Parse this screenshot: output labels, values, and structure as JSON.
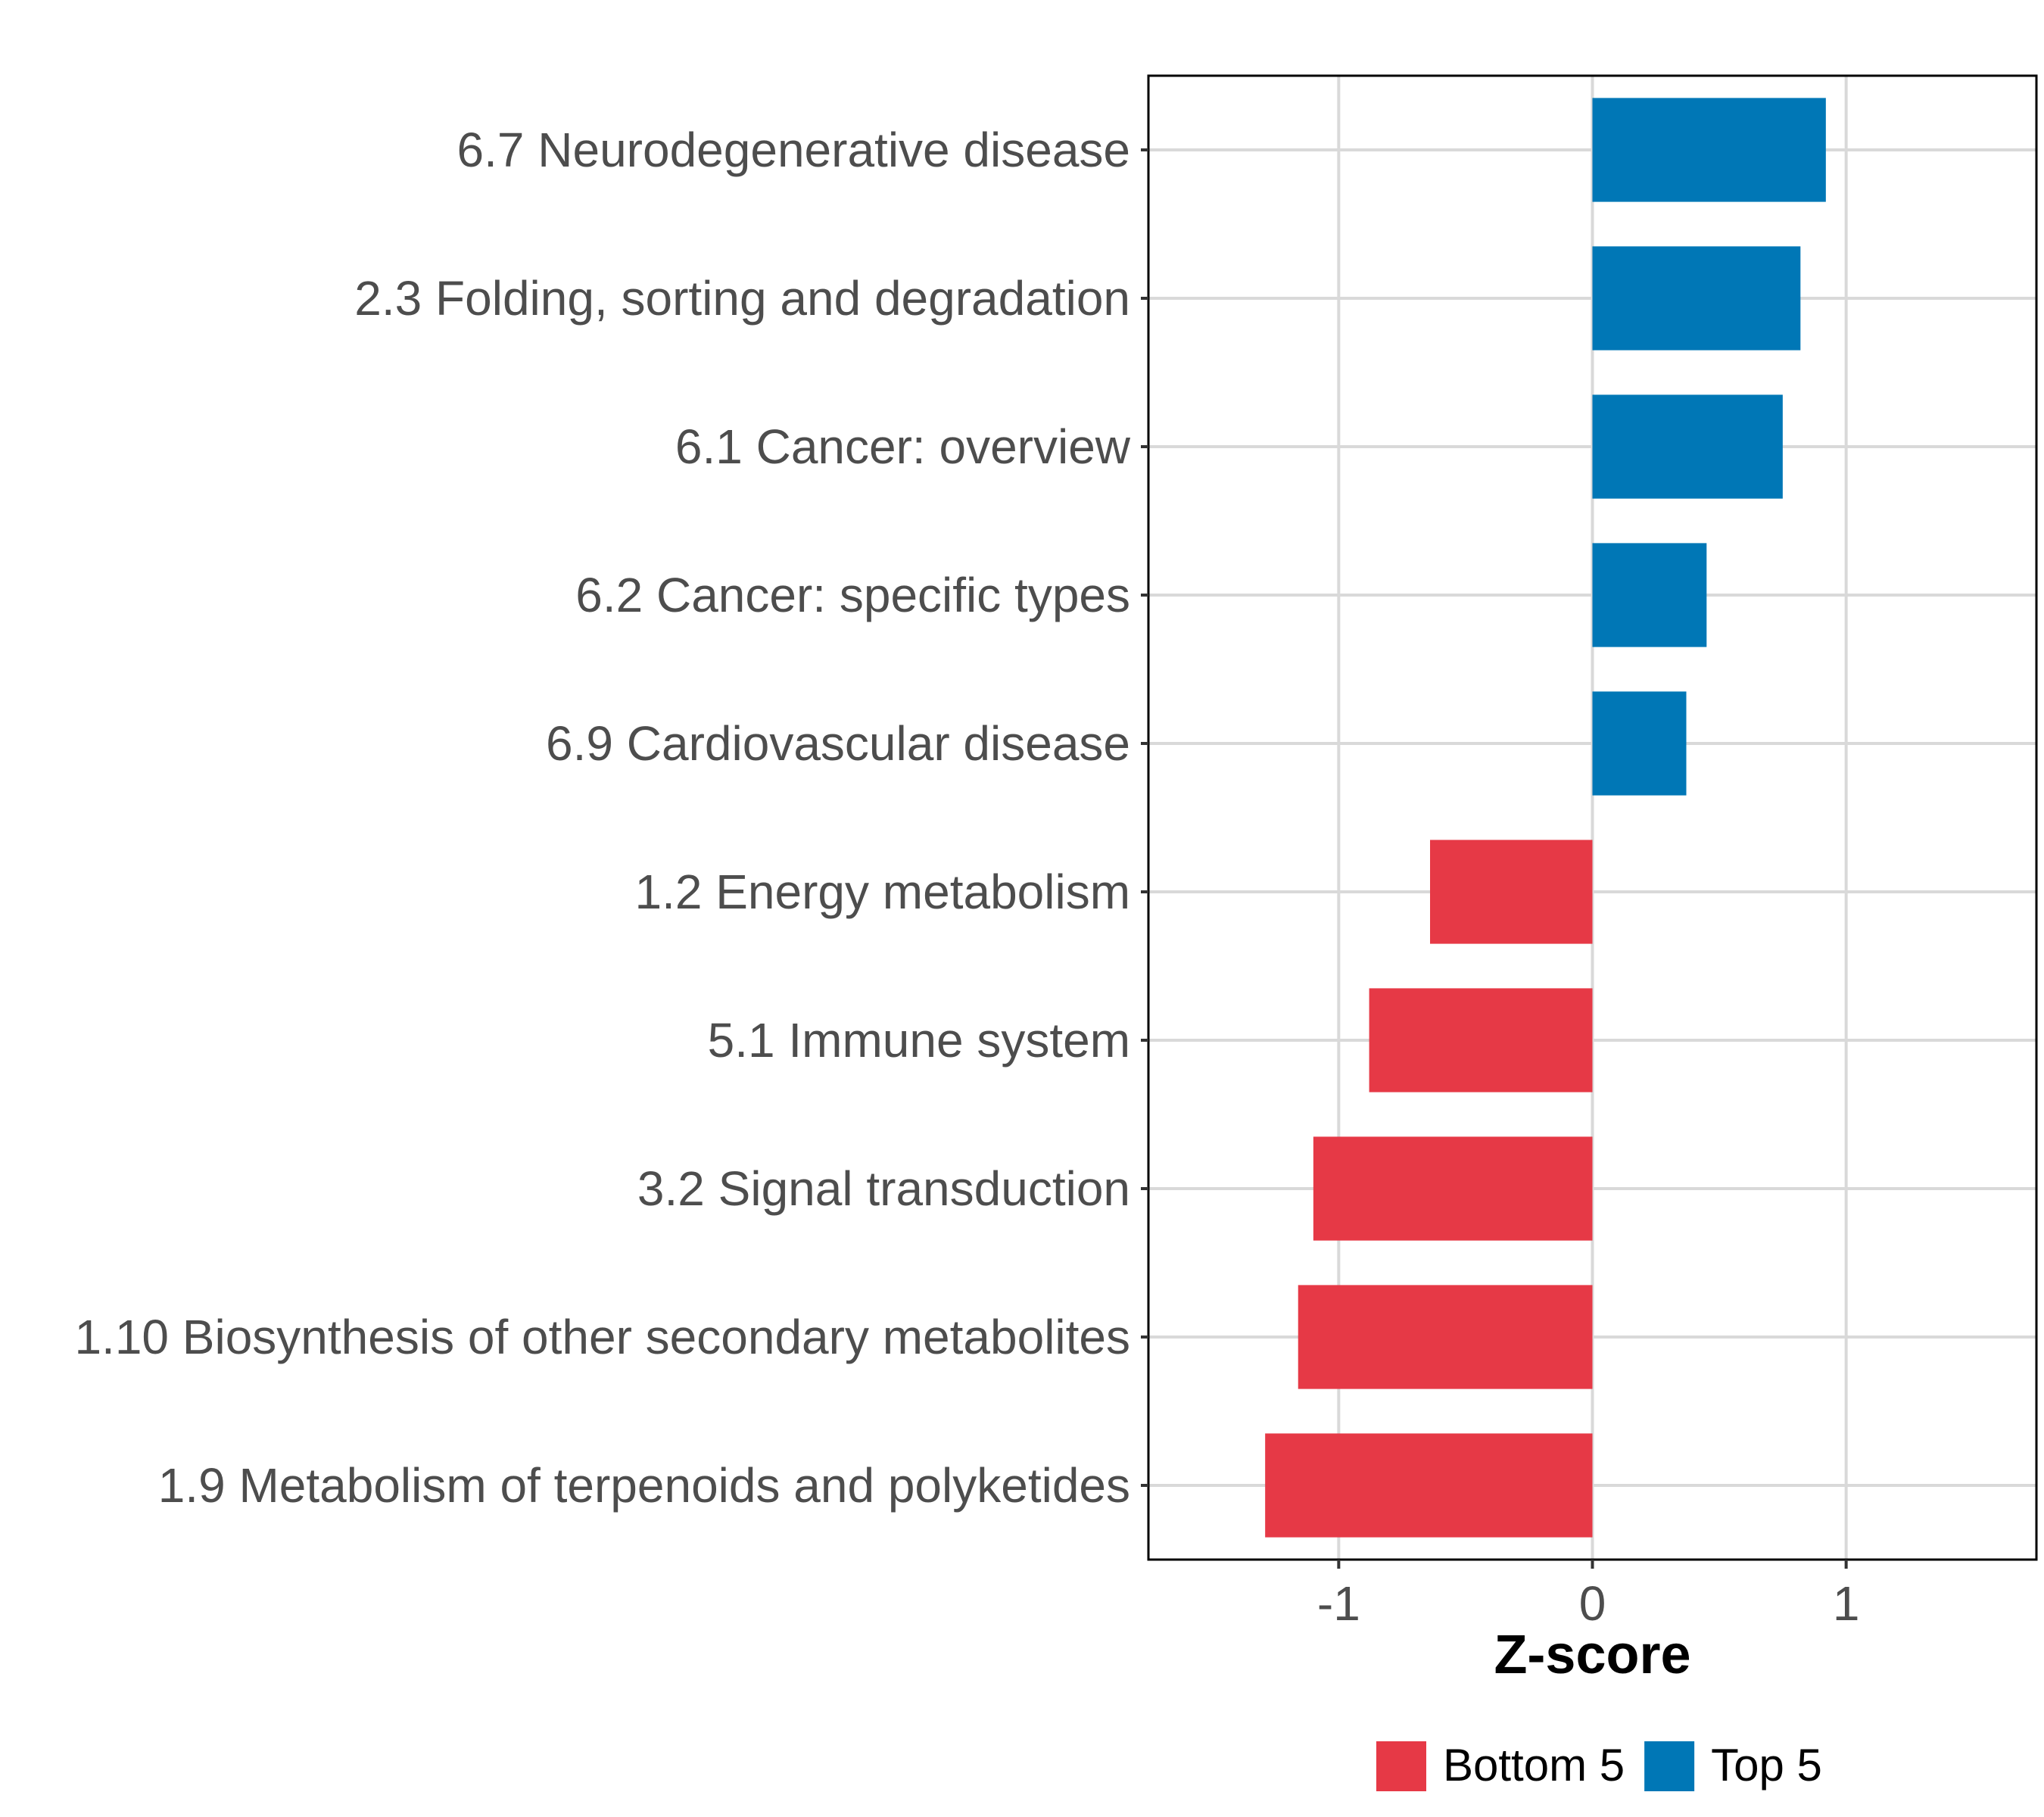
{
  "chart_data": {
    "type": "bar",
    "orientation": "horizontal",
    "categories": [
      "6.7 Neurodegenerative disease",
      "2.3 Folding, sorting and degradation",
      "6.1 Cancer: overview",
      "6.2 Cancer: specific types",
      "6.9 Cardiovascular disease",
      "1.2 Energy metabolism",
      "5.1 Immune system",
      "3.2 Signal transduction",
      "1.10 Biosynthesis of other secondary metabolites",
      "1.9 Metabolism of terpenoids and polyketides"
    ],
    "values": [
      0.92,
      0.82,
      0.75,
      0.45,
      0.37,
      -0.64,
      -0.88,
      -1.1,
      -1.16,
      -1.29
    ],
    "groups": [
      "Top 5",
      "Top 5",
      "Top 5",
      "Top 5",
      "Top 5",
      "Bottom 5",
      "Bottom 5",
      "Bottom 5",
      "Bottom 5",
      "Bottom 5"
    ],
    "xlabel": "Z-score",
    "ylabel": "",
    "xlim": [
      -1.75,
      1.75
    ],
    "xticks": [
      -1,
      0,
      1
    ],
    "xtick_labels": [
      "-1",
      "0",
      "1"
    ],
    "grid": true,
    "legend": {
      "position": "bottom",
      "entries": [
        {
          "name": "Bottom 5",
          "color": "#E63946"
        },
        {
          "name": "Top 5",
          "color": "#0077B6"
        }
      ]
    },
    "colors": {
      "Top 5": "#0077B6",
      "Bottom 5": "#E63946"
    }
  }
}
